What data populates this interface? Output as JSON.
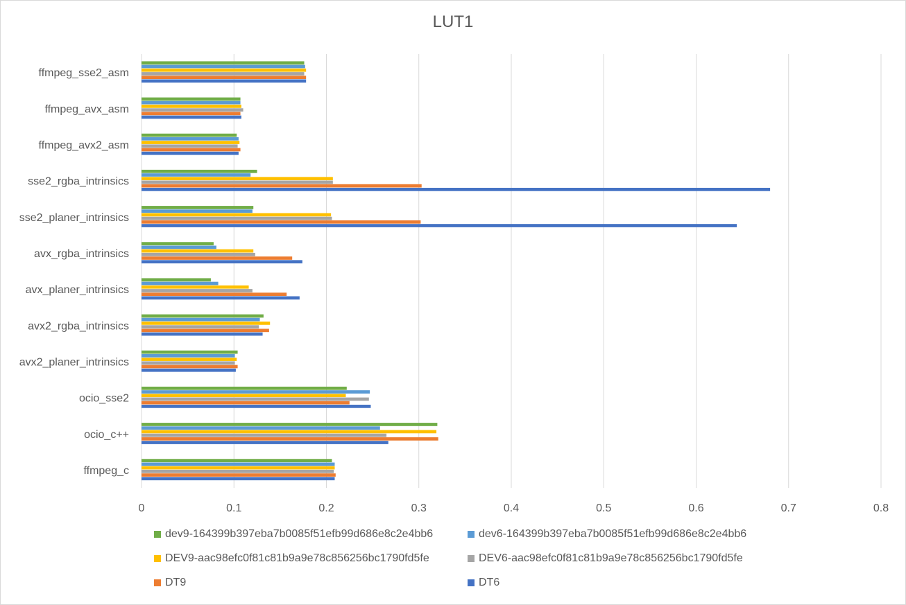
{
  "chart_data": {
    "type": "bar",
    "orientation": "horizontal",
    "title": "LUT1",
    "xlabel": "",
    "ylabel": "",
    "xlim": [
      0,
      0.8
    ],
    "xticks": [
      "0",
      "0.1",
      "0.2",
      "0.3",
      "0.4",
      "0.5",
      "0.6",
      "0.7",
      "0.8"
    ],
    "grid": "vertical",
    "legend_position": "bottom",
    "categories": [
      "ffmpeg_sse2_asm",
      "ffmpeg_avx_asm",
      "ffmpeg_avx2_asm",
      "sse2_rgba_intrinsics",
      "sse2_planer_intrinsics",
      "avx_rgba_intrinsics",
      "avx_planer_intrinsics",
      "avx2_rgba_intrinsics",
      "avx2_planer_intrinsics",
      "ocio_sse2",
      "ocio_c++",
      "ffmpeg_c"
    ],
    "series": [
      {
        "name": "dev9-164399b397eba7b0085f51efb99d686e8c2e4bb6",
        "color": "#70ad47",
        "values": [
          0.176,
          0.107,
          0.103,
          0.125,
          0.121,
          0.078,
          0.075,
          0.132,
          0.104,
          0.222,
          0.32,
          0.206
        ]
      },
      {
        "name": "dev6-164399b397eba7b0085f51efb99d686e8c2e4bb6",
        "color": "#5b9bd5",
        "values": [
          0.177,
          0.107,
          0.105,
          0.118,
          0.12,
          0.081,
          0.083,
          0.128,
          0.101,
          0.247,
          0.258,
          0.209
        ]
      },
      {
        "name": "DEV9-aac98efc0f81c81b9a9e78c856256bc1790fd5fe",
        "color": "#ffc000",
        "values": [
          0.178,
          0.108,
          0.106,
          0.207,
          0.205,
          0.121,
          0.116,
          0.139,
          0.103,
          0.221,
          0.319,
          0.209
        ]
      },
      {
        "name": "DEV6-aac98efc0f81c81b9a9e78c856256bc1790fd5fe",
        "color": "#a5a5a5",
        "values": [
          0.176,
          0.11,
          0.104,
          0.207,
          0.206,
          0.123,
          0.12,
          0.127,
          0.101,
          0.246,
          0.265,
          0.208
        ]
      },
      {
        "name": "DT9",
        "color": "#ed7d31",
        "values": [
          0.178,
          0.107,
          0.107,
          0.303,
          0.302,
          0.163,
          0.157,
          0.138,
          0.104,
          0.225,
          0.321,
          0.21
        ]
      },
      {
        "name": "DT6",
        "color": "#4472c4",
        "values": [
          0.178,
          0.108,
          0.105,
          0.68,
          0.644,
          0.174,
          0.171,
          0.131,
          0.102,
          0.248,
          0.267,
          0.209
        ]
      }
    ]
  }
}
